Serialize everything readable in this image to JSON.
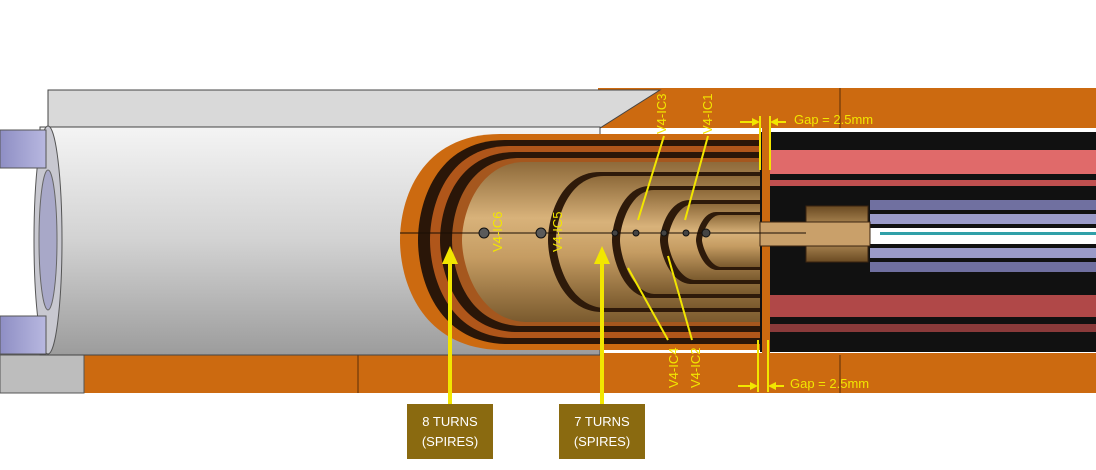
{
  "colors": {
    "copper": "#cc6a10",
    "gold_body": "#b58a52",
    "label_yellow": "#f2e600",
    "box_fill": "#8a6a10"
  },
  "coil_labels": {
    "ic6": "V4-IC6",
    "ic5": "V4-IC5",
    "ic3": "V4-IC3",
    "ic1": "V4-IC1",
    "ic4": "V4-IC4",
    "ic2": "V4-IC2"
  },
  "gap_top": "Gap = 2.5mm",
  "gap_bottom": "Gap = 2.5mm",
  "callouts": {
    "left": {
      "line1": "8 TURNS",
      "line2": "(SPIRES)"
    },
    "right": {
      "line1": "7 TURNS",
      "line2": "(SPIRES)"
    }
  }
}
